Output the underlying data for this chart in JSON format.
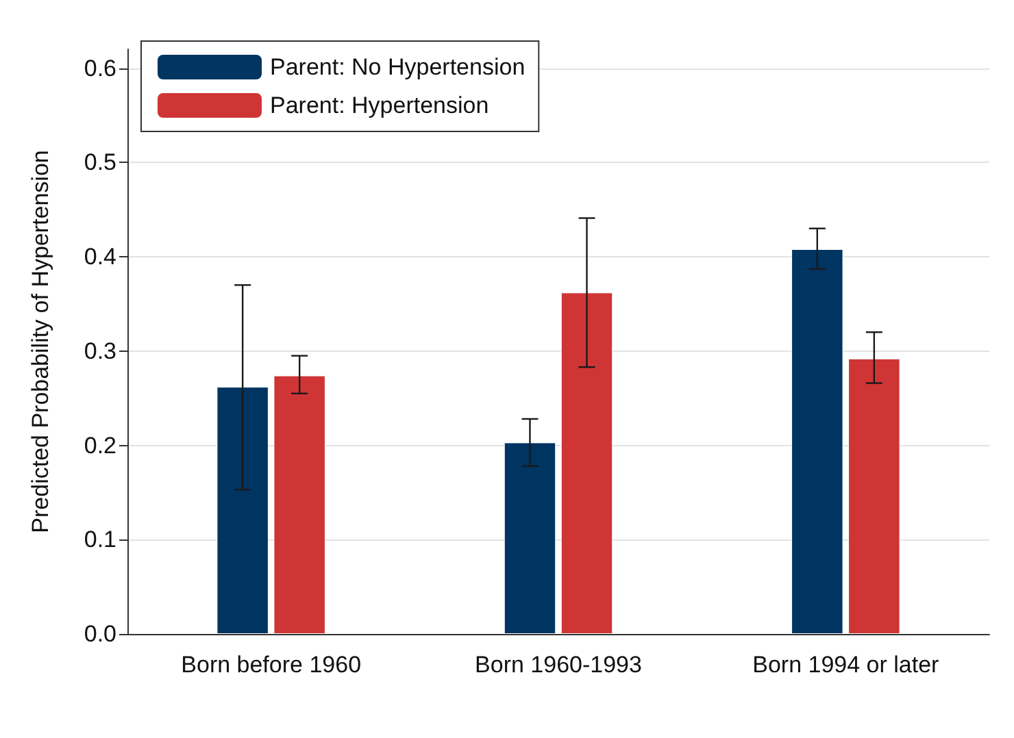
{
  "chart_data": {
    "type": "bar",
    "ylabel": "Predicted Probability of Hypertension",
    "categories": [
      "Born before 1960",
      "Born 1960-1993",
      "Born 1994 or later"
    ],
    "series": [
      {
        "name": "Parent: No Hypertension",
        "color": "#003461",
        "values": [
          0.262,
          0.203,
          0.408
        ],
        "errors": [
          [
            0.153,
            0.37
          ],
          [
            0.178,
            0.228
          ],
          [
            0.387,
            0.43
          ]
        ]
      },
      {
        "name": "Parent: Hypertension",
        "color": "#cf3535",
        "values": [
          0.274,
          0.362,
          0.292
        ],
        "errors": [
          [
            0.255,
            0.295
          ],
          [
            0.283,
            0.441
          ],
          [
            0.266,
            0.32
          ]
        ]
      }
    ],
    "ylim": [
      0,
      0.62
    ],
    "yticks": [
      {
        "value": 0,
        "label": "0.0"
      },
      {
        "value": 0.1,
        "label": "0.1"
      },
      {
        "value": 0.2,
        "label": "0.2"
      },
      {
        "value": 0.3,
        "label": "0.3"
      },
      {
        "value": 0.4,
        "label": "0.4"
      },
      {
        "value": 0.5,
        "label": "0.5"
      },
      {
        "value": 0.6,
        "label": "0.6"
      }
    ],
    "grid": "y",
    "legend": "top left"
  }
}
